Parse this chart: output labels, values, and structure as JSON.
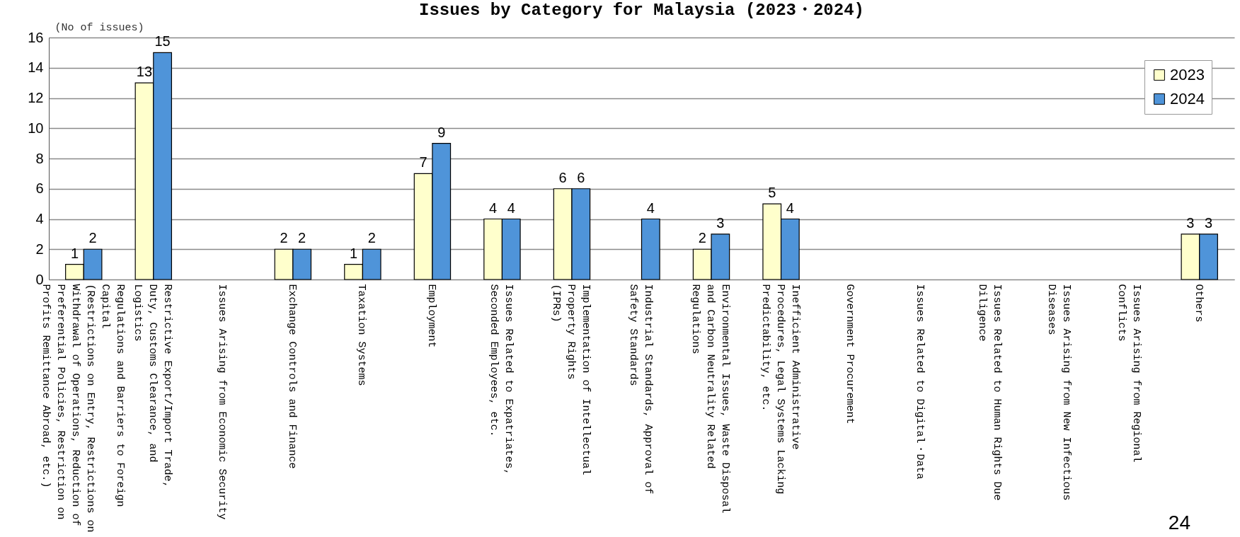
{
  "chart_data": {
    "type": "bar",
    "title": "Issues by Category for Malaysia (2023・2024)",
    "ylabel": "(No of issues)",
    "categories": [
      "Regulations and Barriers to Foreign Capital (Restrictions on Entry, Restrictions on Withdrawal of Operations, Reduction of Preferential Policies, Restriction on Profits Remittance Abroad, etc.)",
      "Restrictive Export/Import Trade, Duty, Customs Clearance, and Logistics",
      "Issues Arising from Economic Security",
      "Exchange Controls and Finance",
      "Taxation Systems",
      "Employment",
      "Issues Related to Expatriates, Seconded Employees, etc.",
      "Implementation of Intellectual Property Rights (IPRs)",
      "Industrial Standards, Approval of Safety Standards",
      "Environmental Issues, Waste Disposal and Carbon Neutrality Related Regulations",
      "Inefficient Administrative Procedures, Legal Systems Lacking Predictability, etc.",
      "Government Procurement",
      "Issues Related to Digital・Data",
      "Issues Related to Human Rights Due Diligence",
      "Issues Arising from New Infectious Diseases",
      "Issues Arising from Regional Conflicts",
      "Others"
    ],
    "series": [
      {
        "name": "2023",
        "color": "#ffffcc",
        "values": [
          1,
          13,
          null,
          2,
          1,
          7,
          4,
          6,
          null,
          2,
          5,
          null,
          null,
          null,
          null,
          null,
          3
        ]
      },
      {
        "name": "2024",
        "color": "#4f94d9",
        "values": [
          2,
          15,
          null,
          2,
          2,
          9,
          4,
          6,
          4,
          3,
          4,
          null,
          null,
          null,
          null,
          null,
          3
        ]
      }
    ],
    "ylim": [
      0,
      16
    ],
    "yticks": [
      0,
      2,
      4,
      6,
      8,
      10,
      12,
      14,
      16
    ],
    "grid": "y",
    "legend": "top right",
    "data_labels": true,
    "annotations": [
      "24"
    ]
  }
}
